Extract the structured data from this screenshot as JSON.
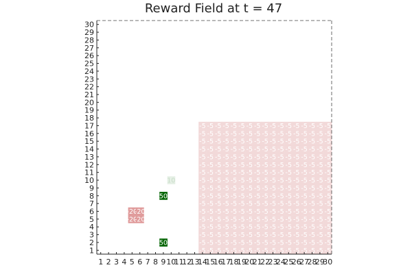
{
  "chart_data": {
    "type": "heatmap",
    "title": "Reward Field at t = 47",
    "xlabel": "",
    "ylabel": "",
    "xlim": [
      1,
      30
    ],
    "ylim": [
      1,
      30
    ],
    "x_ticks": [
      "1",
      "2",
      "3",
      "4",
      "5",
      "6",
      "7",
      "8",
      "9",
      "10",
      "11",
      "12",
      "13",
      "14",
      "15",
      "16",
      "17",
      "18",
      "19",
      "20",
      "21",
      "22",
      "23",
      "24",
      "25",
      "26",
      "27",
      "28",
      "29",
      "30"
    ],
    "y_ticks": [
      "1",
      "2",
      "3",
      "4",
      "5",
      "6",
      "7",
      "8",
      "9",
      "10",
      "11",
      "12",
      "13",
      "14",
      "15",
      "16",
      "17",
      "18",
      "19",
      "20",
      "21",
      "22",
      "23",
      "24",
      "25",
      "26",
      "27",
      "28",
      "29",
      "30"
    ],
    "grid": false,
    "legend": "none",
    "regions": [
      {
        "x_from": 14,
        "x_to": 30,
        "y_from": 1,
        "y_to": 17,
        "value": -5,
        "label": "-5",
        "color": "#f2d9d9"
      }
    ],
    "cells": [
      {
        "x": 5,
        "y": 5,
        "value": -20,
        "label": "-20",
        "color": "#e09b9b"
      },
      {
        "x": 5,
        "y": 6,
        "value": -20,
        "label": "-20",
        "color": "#e09b9b"
      },
      {
        "x": 6,
        "y": 5,
        "value": -20,
        "label": "-20",
        "color": "#e09b9b"
      },
      {
        "x": 6,
        "y": 6,
        "value": -20,
        "label": "-20",
        "color": "#e09b9b"
      },
      {
        "x": 9,
        "y": 2,
        "value": 50,
        "label": "50",
        "color": "#006400"
      },
      {
        "x": 9,
        "y": 8,
        "value": 50,
        "label": "50",
        "color": "#006400"
      },
      {
        "x": 10,
        "y": 10,
        "value": 10,
        "label": "10",
        "color": "#e6f0e6"
      }
    ]
  }
}
